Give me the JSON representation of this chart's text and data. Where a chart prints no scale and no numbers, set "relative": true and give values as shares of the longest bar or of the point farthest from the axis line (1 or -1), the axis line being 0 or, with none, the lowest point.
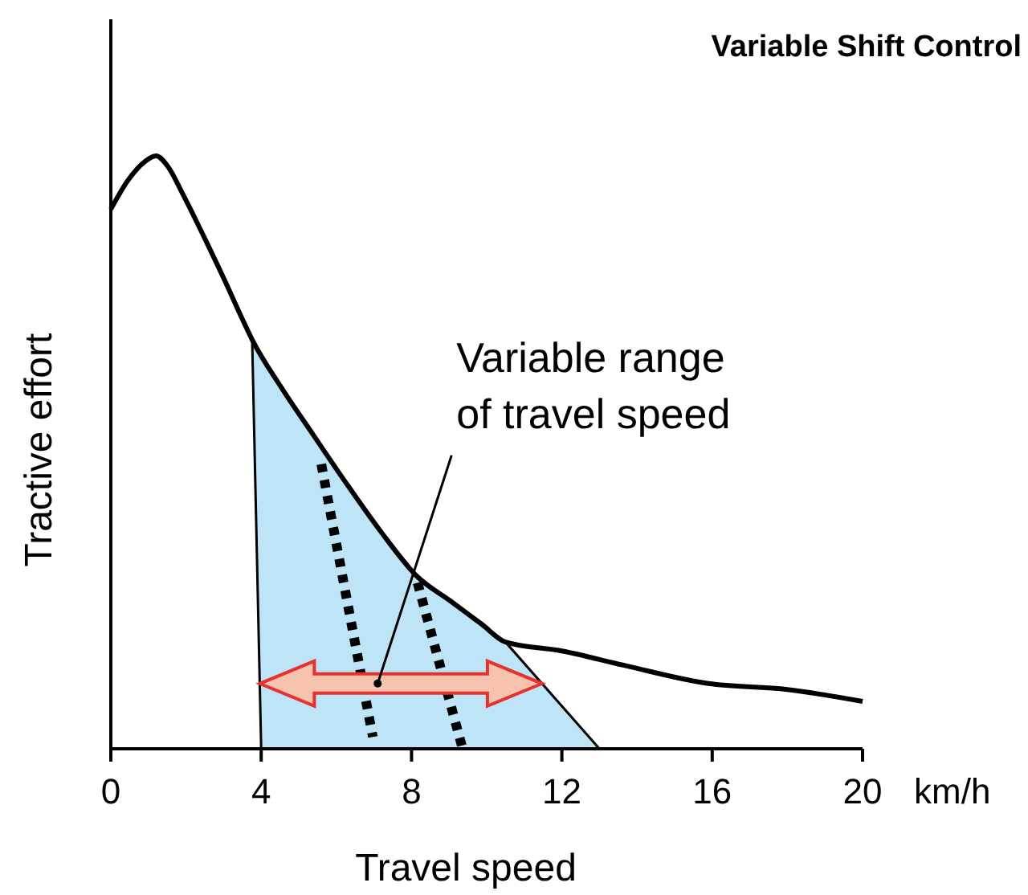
{
  "chart_data": {
    "type": "line",
    "title": "Variable Shift Control",
    "xlabel": "Travel speed",
    "ylabel": "Tractive effort",
    "relative": true,
    "xlim": [
      0,
      20
    ],
    "xticks": [
      0,
      4,
      8,
      12,
      16,
      20
    ],
    "annotations": [
      {
        "text": "Variable range\nof travel speed",
        "x": 7.1,
        "y": 0.11
      },
      "km/h"
    ],
    "series": [
      {
        "type": "area",
        "color": "#bde4f7",
        "x": [
          4.0,
          3.76,
          4.53,
          5.38,
          6.24,
          7.14,
          8.16,
          9.02,
          9.87,
          10.5,
          13
        ],
        "values": [
          0,
          0.69,
          0.61,
          0.53,
          0.45,
          0.37,
          0.29,
          0.25,
          0.21,
          0.18,
          0
        ]
      },
      {
        "color": "#000000",
        "line_style": "solid",
        "x": [
          0,
          0.47,
          0.9,
          1.2,
          1.54,
          1.88,
          2.39,
          3.03,
          3.46,
          3.76,
          4.53,
          5.38,
          6.24,
          7.14,
          8.16,
          9.02,
          9.87,
          10.5,
          12.0,
          13.7,
          15.9,
          18.0,
          20
        ],
        "values": [
          0.91,
          0.96,
          0.99,
          1.0,
          0.98,
          0.94,
          0.875,
          0.79,
          0.73,
          0.69,
          0.61,
          0.53,
          0.45,
          0.37,
          0.29,
          0.25,
          0.21,
          0.18,
          0.165,
          0.14,
          0.11,
          0.1,
          0.08
        ]
      },
      {
        "color": "#000000",
        "line_style": "dotted",
        "x": [
          5.6,
          6.97
        ],
        "values": [
          0.48,
          0.02
        ]
      },
      {
        "color": "#000000",
        "line_style": "dotted",
        "x": [
          8.16,
          9.36
        ],
        "values": [
          0.28,
          0
        ]
      }
    ]
  }
}
